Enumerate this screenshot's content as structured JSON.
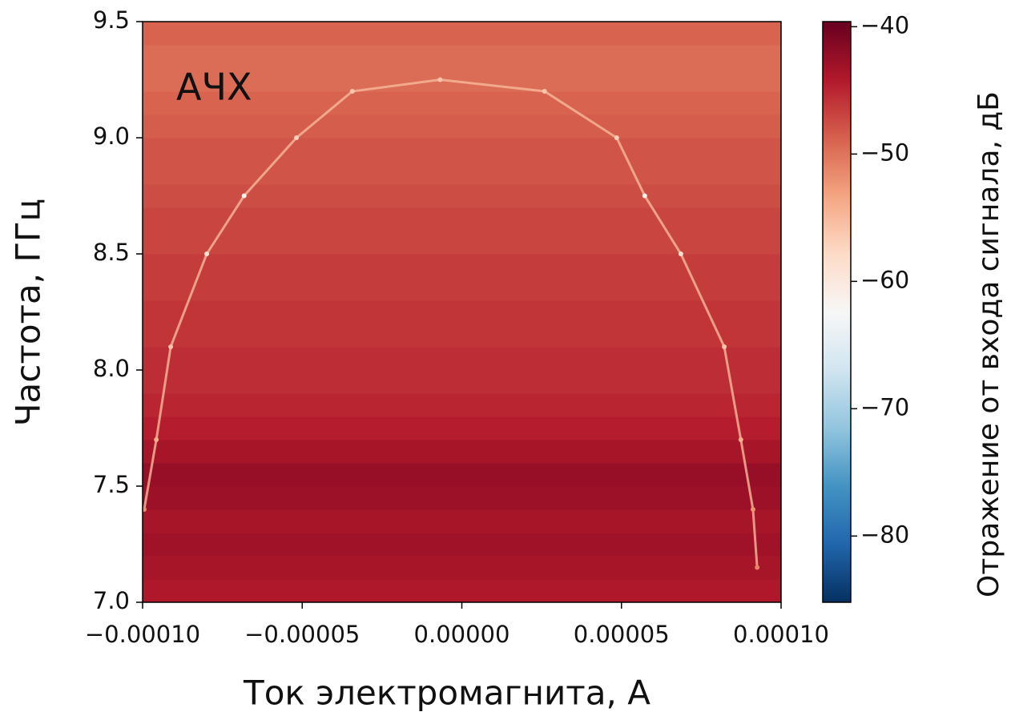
{
  "chart_data": {
    "type": "heatmap",
    "annotation": "АЧХ",
    "xlabel": "Ток электромагнита, А",
    "ylabel": "Частота, ГГц",
    "colorbar_label": "Отражение от входа сигнала, дБ",
    "xlim": [
      -0.0001,
      0.0001
    ],
    "xticks": [
      {
        "value": -0.0001,
        "label": "−0.00010"
      },
      {
        "value": -5e-05,
        "label": "−0.00005"
      },
      {
        "value": 0,
        "label": "0.00000"
      },
      {
        "value": 5e-05,
        "label": "0.00005"
      },
      {
        "value": 0.0001,
        "label": "0.00010"
      }
    ],
    "ylim": [
      7.0,
      9.5
    ],
    "yticks": [
      {
        "value": 7,
        "label": "7.0"
      },
      7.5,
      {
        "value": 8,
        "label": "8.0"
      },
      8.5,
      {
        "value": 9,
        "label": "9.0"
      },
      9.5
    ],
    "clim": [
      -85.2,
      -39.6
    ],
    "cticks": [
      {
        "value": -40,
        "label": "−40"
      },
      {
        "value": -50,
        "label": "−50"
      },
      {
        "value": -60,
        "label": "−60"
      },
      {
        "value": -70,
        "label": "−70"
      },
      {
        "value": -80,
        "label": "−80"
      }
    ],
    "colormap": [
      "#053061",
      "#2166ac",
      "#4393c3",
      "#92c5de",
      "#d1e5f0",
      "#f7f7f7",
      "#fddbc7",
      "#f4a582",
      "#d6604d",
      "#b2182b",
      "#67001f"
    ],
    "rows": {
      "y": [
        7.05,
        7.15,
        7.25,
        7.35,
        7.45,
        7.55,
        7.65,
        7.75,
        7.85,
        7.95,
        8.05,
        8.15,
        8.25,
        8.35,
        8.45,
        8.55,
        8.65,
        8.75,
        8.85,
        8.95,
        9.05,
        9.15,
        9.25,
        9.35,
        9.45
      ],
      "values": [
        -44,
        -43.5,
        -43,
        -43.5,
        -42.8,
        -42.5,
        -43.5,
        -44.5,
        -45,
        -45.5,
        -45.5,
        -46,
        -46,
        -46.5,
        -46.5,
        -47,
        -47,
        -47.5,
        -48,
        -48,
        -48.5,
        -49,
        -49.5,
        -49.5,
        -49
      ]
    },
    "curve": {
      "x": [
        -9.95e-05,
        -9.57e-05,
        -9.12e-05,
        -7.99e-05,
        -6.82e-05,
        -5.18e-05,
        -3.43e-05,
        -6.8e-06,
        2.59e-05,
        4.85e-05,
        5.73e-05,
        6.86e-05,
        8.22e-05,
        8.74e-05,
        9.12e-05,
        9.25e-05
      ],
      "y": [
        7.4,
        7.7,
        8.1,
        8.5,
        8.75,
        9.0,
        9.2,
        9.25,
        9.2,
        9.0,
        8.75,
        8.5,
        8.1,
        7.7,
        7.4,
        7.15
      ],
      "values": [
        -52,
        -54,
        -56,
        -59,
        -61,
        -57,
        -56,
        -56,
        -56,
        -57,
        -61,
        -59,
        -56,
        -54,
        -52,
        -51
      ]
    }
  }
}
